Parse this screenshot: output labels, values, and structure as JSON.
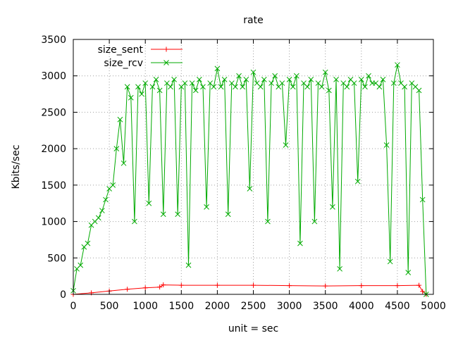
{
  "chart_data": {
    "type": "line",
    "title": "rate",
    "xlabel": "unit = sec",
    "ylabel": "Kbits/sec",
    "xlim": [
      0,
      5000
    ],
    "ylim": [
      0,
      3500
    ],
    "x_ticks": [
      0,
      500,
      1000,
      1500,
      2000,
      2500,
      3000,
      3500,
      4000,
      4500,
      5000
    ],
    "y_ticks": [
      0,
      500,
      1000,
      1500,
      2000,
      2500,
      3000,
      3500
    ],
    "grid": true,
    "legend_position": "top-left",
    "series": [
      {
        "name": "size_sent",
        "color": "#ff0000",
        "marker": "plus",
        "x": [
          0,
          250,
          500,
          750,
          1000,
          1200,
          1250,
          1500,
          2000,
          2500,
          3000,
          3500,
          4000,
          4500,
          4800,
          4850,
          4900
        ],
        "y": [
          0,
          20,
          45,
          70,
          90,
          100,
          130,
          125,
          125,
          125,
          120,
          115,
          120,
          120,
          125,
          40,
          0
        ]
      },
      {
        "name": "size_rcv",
        "color": "#00aa00",
        "marker": "cross",
        "x": [
          0,
          50,
          100,
          150,
          200,
          250,
          300,
          350,
          400,
          450,
          500,
          550,
          600,
          650,
          700,
          750,
          800,
          850,
          900,
          950,
          1000,
          1050,
          1100,
          1150,
          1200,
          1250,
          1300,
          1350,
          1400,
          1450,
          1500,
          1550,
          1600,
          1650,
          1700,
          1750,
          1800,
          1850,
          1900,
          1950,
          2000,
          2050,
          2100,
          2150,
          2200,
          2250,
          2300,
          2350,
          2400,
          2450,
          2500,
          2550,
          2600,
          2650,
          2700,
          2750,
          2800,
          2850,
          2900,
          2950,
          3000,
          3050,
          3100,
          3150,
          3200,
          3250,
          3300,
          3350,
          3400,
          3450,
          3500,
          3550,
          3600,
          3650,
          3700,
          3750,
          3800,
          3850,
          3900,
          3950,
          4000,
          4050,
          4100,
          4150,
          4200,
          4250,
          4300,
          4350,
          4400,
          4450,
          4500,
          4550,
          4600,
          4650,
          4700,
          4750,
          4800,
          4850,
          4900
        ],
        "y": [
          50,
          350,
          400,
          650,
          700,
          950,
          1000,
          1050,
          1150,
          1300,
          1450,
          1500,
          2000,
          2400,
          1800,
          2850,
          2700,
          1000,
          2850,
          2750,
          2900,
          1250,
          2850,
          2950,
          2800,
          1100,
          2900,
          2850,
          2950,
          1100,
          2850,
          2900,
          400,
          2900,
          2800,
          2950,
          2850,
          1200,
          2900,
          2850,
          3100,
          2850,
          2950,
          1100,
          2900,
          2850,
          3000,
          2850,
          2950,
          1450,
          3050,
          2900,
          2850,
          2950,
          1000,
          2900,
          3000,
          2850,
          2900,
          2050,
          2950,
          2850,
          3000,
          700,
          2900,
          2850,
          2950,
          1000,
          2900,
          2850,
          3050,
          2800,
          1200,
          2950,
          350,
          2900,
          2850,
          2950,
          2900,
          1550,
          2950,
          2850,
          3000,
          2900,
          2900,
          2850,
          2950,
          2050,
          450,
          2900,
          3150,
          2900,
          2850,
          300,
          2900,
          2850,
          2800,
          1300,
          0
        ]
      }
    ]
  }
}
